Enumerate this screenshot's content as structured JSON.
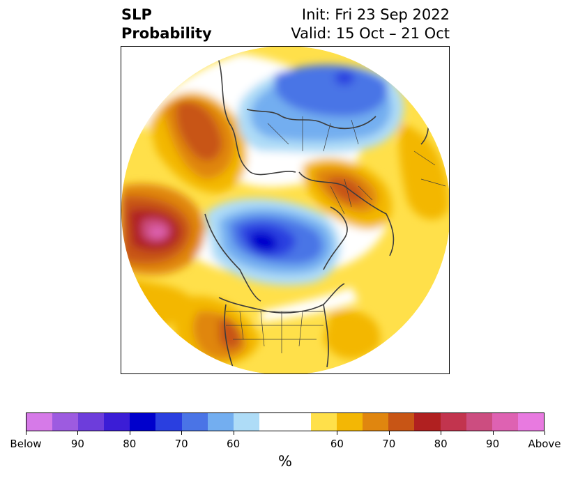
{
  "header": {
    "title_line1": "SLP",
    "title_line2": "Probability",
    "init_label": "Init: Fri 23 Sep 2022",
    "valid_label": "Valid: 15 Oct – 21 Oct"
  },
  "colorbar": {
    "unit": "%",
    "colors": [
      "#d67ae8",
      "#9d5be0",
      "#6d3ddb",
      "#3b1dd6",
      "#0000cc",
      "#2a3fe0",
      "#4a74e6",
      "#73aef0",
      "#aedcf7",
      "#ffffff",
      "#ffe04a",
      "#f3b705",
      "#e0860f",
      "#c85515",
      "#b02020",
      "#c2344e",
      "#cc4d80",
      "#de62b2",
      "#e87ae0"
    ],
    "ticks": [
      {
        "label": "Below"
      },
      {
        "label": "90"
      },
      {
        "label": "80"
      },
      {
        "label": "70"
      },
      {
        "label": "60"
      },
      {
        "label": "60"
      },
      {
        "label": "70"
      },
      {
        "label": "80"
      },
      {
        "label": "90"
      },
      {
        "label": "Above"
      }
    ]
  }
}
